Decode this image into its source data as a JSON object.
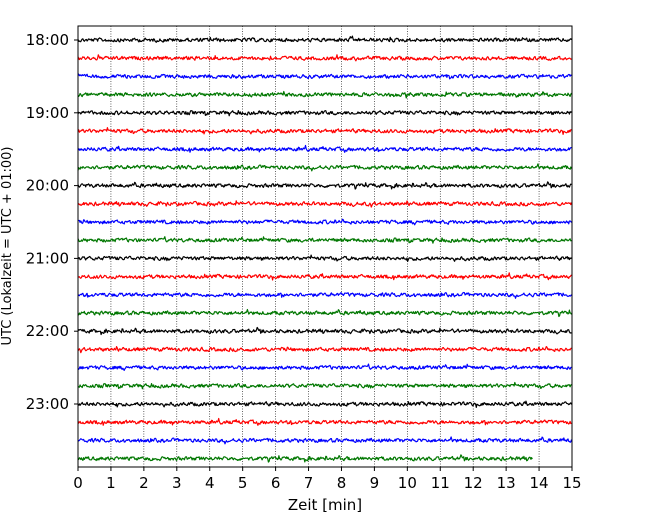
{
  "chart_data": {
    "type": "line",
    "subtype": "helicorder",
    "title": "",
    "xlabel": "Zeit  [min]",
    "ylabel": "UTC (Lokalzeit = UTC + 01:00)",
    "xlim": [
      0,
      15
    ],
    "x_ticks": [
      "0",
      "1",
      "2",
      "3",
      "4",
      "5",
      "6",
      "7",
      "8",
      "9",
      "10",
      "11",
      "12",
      "13",
      "14",
      "15"
    ],
    "y_tick_labels": [
      "18:00",
      "19:00",
      "20:00",
      "21:00",
      "22:00",
      "23:00"
    ],
    "x_grid": true,
    "trace_interval_min": 15,
    "color_cycle": [
      "#000000",
      "#ff0000",
      "#0000ff",
      "#007700"
    ],
    "traces": [
      {
        "start": "18:00",
        "end_min": 15
      },
      {
        "start": "18:15",
        "end_min": 15
      },
      {
        "start": "18:30",
        "end_min": 15
      },
      {
        "start": "18:45",
        "end_min": 15
      },
      {
        "start": "19:00",
        "end_min": 15
      },
      {
        "start": "19:15",
        "end_min": 15
      },
      {
        "start": "19:30",
        "end_min": 15
      },
      {
        "start": "19:45",
        "end_min": 15
      },
      {
        "start": "20:00",
        "end_min": 15
      },
      {
        "start": "20:15",
        "end_min": 15
      },
      {
        "start": "20:30",
        "end_min": 15
      },
      {
        "start": "20:45",
        "end_min": 15
      },
      {
        "start": "21:00",
        "end_min": 15
      },
      {
        "start": "21:15",
        "end_min": 15
      },
      {
        "start": "21:30",
        "end_min": 15
      },
      {
        "start": "21:45",
        "end_min": 15
      },
      {
        "start": "22:00",
        "end_min": 15
      },
      {
        "start": "22:15",
        "end_min": 15
      },
      {
        "start": "22:30",
        "end_min": 15
      },
      {
        "start": "22:45",
        "end_min": 15
      },
      {
        "start": "23:00",
        "end_min": 15
      },
      {
        "start": "23:15",
        "end_min": 15
      },
      {
        "start": "23:30",
        "end_min": 15
      },
      {
        "start": "23:45",
        "end_min": 13.8
      }
    ]
  }
}
